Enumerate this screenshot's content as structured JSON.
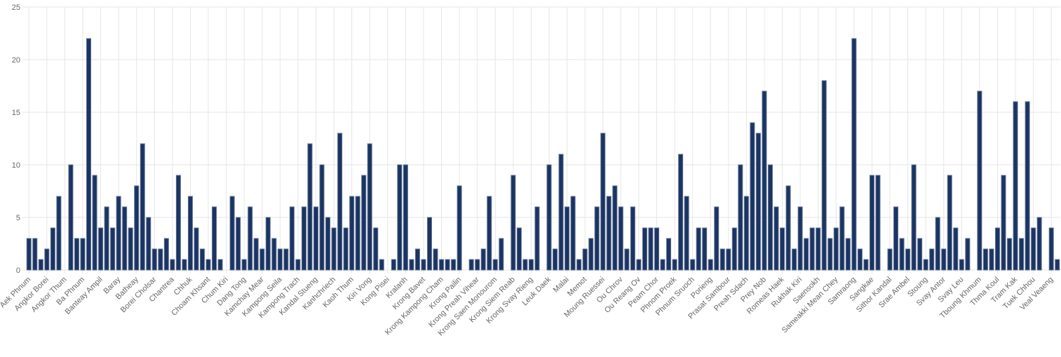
{
  "chart_data": {
    "type": "bar",
    "color": "#1b3461",
    "ylim": [
      0,
      25
    ],
    "yticks": [
      0,
      5,
      10,
      15,
      20,
      25
    ],
    "grid": true,
    "categories": [
      "Aek Phnum",
      null,
      null,
      "Angkor Borei",
      null,
      null,
      "Angkor Thum",
      null,
      null,
      "Ba Phnum",
      null,
      null,
      "Banteay Ampil",
      null,
      null,
      "Baray",
      null,
      null,
      "Batheay",
      null,
      null,
      "Borei Cholsar",
      null,
      null,
      "Chantrea",
      null,
      null,
      "Chhuk",
      null,
      null,
      "Choam Khsant",
      null,
      null,
      "Chum Kiri",
      null,
      null,
      "Dang Tong",
      null,
      null,
      "Kamchay Mear",
      null,
      null,
      "Kampong Seila",
      null,
      null,
      "Kampong Trach",
      null,
      null,
      "Kandal Stueng",
      null,
      null,
      "Kanhchriech",
      null,
      null,
      "Kaoh Thum",
      null,
      null,
      "Kiri Vong",
      null,
      null,
      "Kong Pisei",
      null,
      null,
      "Kralanh",
      null,
      null,
      "Krong Bavet",
      null,
      null,
      "Krong Kampong Cham",
      null,
      null,
      "Krong Pailin",
      null,
      null,
      "Krong Preah Vihear",
      null,
      null,
      "Krong Saen Monourom",
      null,
      null,
      "Krong Siem Reab",
      null,
      null,
      "Krong Svay Rieng",
      null,
      null,
      "Leuk Daek",
      null,
      null,
      "Malai",
      null,
      null,
      "Memot",
      null,
      null,
      "Moung Ruessei",
      null,
      null,
      "Ou Chrov",
      null,
      null,
      "Ou Reang Ov",
      null,
      null,
      "Peam Chor",
      null,
      null,
      "Phnom Proek",
      null,
      null,
      "Phnum Sruoch",
      null,
      null,
      "Porieng",
      null,
      null,
      "Prasat Sambour",
      null,
      null,
      "Preah Sdach",
      null,
      null,
      "Prey Nob",
      null,
      null,
      "Romeas Haek",
      null,
      null,
      "Rukhak Kiri",
      null,
      null,
      "Saensokh",
      null,
      null,
      "Sameakki Mean Chey",
      null,
      null,
      "Samraong",
      null,
      null,
      "Sangkae",
      null,
      null,
      "Sithor Kandal",
      null,
      null,
      "Srae Ambel",
      null,
      null,
      "Stoung",
      null,
      null,
      "Svay Antor",
      null,
      null,
      "Svay Leu",
      null,
      null,
      "Tboung Khmum",
      null,
      null,
      "Thma Koul",
      null,
      null,
      "Tram Kak",
      null,
      null,
      "Tuek Chhou",
      null,
      null,
      "Veal Veaeng",
      null
    ],
    "values": [
      3,
      3,
      1,
      2,
      4,
      7,
      0,
      10,
      3,
      3,
      22,
      9,
      4,
      6,
      4,
      7,
      6,
      4,
      8,
      12,
      5,
      2,
      2,
      3,
      1,
      9,
      1,
      7,
      4,
      2,
      1,
      6,
      1,
      0,
      7,
      5,
      1,
      6,
      3,
      2,
      5,
      3,
      2,
      2,
      6,
      1,
      6,
      12,
      6,
      10,
      5,
      4,
      13,
      4,
      7,
      7,
      9,
      12,
      4,
      1,
      0,
      1,
      10,
      10,
      1,
      2,
      1,
      5,
      2,
      1,
      1,
      1,
      8,
      0,
      1,
      1,
      2,
      7,
      1,
      3,
      0,
      9,
      4,
      1,
      1,
      6,
      0,
      10,
      2,
      11,
      6,
      7,
      1,
      2,
      3,
      6,
      13,
      7,
      8,
      6,
      2,
      6,
      1,
      4,
      4,
      4,
      1,
      3,
      1,
      11,
      7,
      1,
      4,
      4,
      1,
      6,
      2,
      2,
      4,
      10,
      7,
      14,
      13,
      17,
      10,
      6,
      4,
      8,
      2,
      6,
      3,
      4,
      4,
      18,
      3,
      4,
      6,
      3,
      22,
      2,
      1,
      9,
      9,
      0,
      2,
      6,
      3,
      2,
      10,
      3,
      1,
      2,
      5,
      2,
      9,
      4,
      1,
      3,
      0,
      17,
      2,
      2,
      4,
      9,
      3,
      16,
      3,
      16,
      4,
      5,
      0,
      4,
      1
    ]
  }
}
